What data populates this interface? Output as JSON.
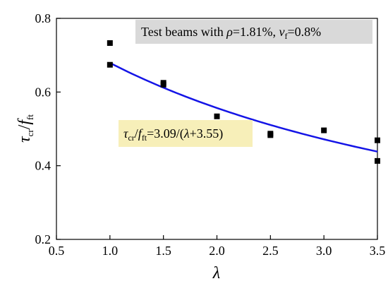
{
  "chart_data": {
    "type": "scatter",
    "xlabel": {
      "main": "λ"
    },
    "ylabel": {
      "main_1": "τ",
      "sub_1": "cr",
      "slash": "/",
      "main_2": "f",
      "sub_2": "ft"
    },
    "xlim": [
      0.5,
      3.5
    ],
    "ylim": [
      0.2,
      0.8
    ],
    "x_ticks": [
      "0.5",
      "1.0",
      "1.5",
      "2.0",
      "2.5",
      "3.0",
      "3.5"
    ],
    "y_ticks": [
      "0.2",
      "0.4",
      "0.6",
      "0.8"
    ],
    "grid": false,
    "series": [
      {
        "kind": "points",
        "color": "#000000",
        "marker": "square",
        "points": [
          {
            "x": 1.0,
            "y": 0.733
          },
          {
            "x": 1.0,
            "y": 0.674
          },
          {
            "x": 1.5,
            "y": 0.625
          },
          {
            "x": 1.5,
            "y": 0.62
          },
          {
            "x": 2.0,
            "y": 0.534
          },
          {
            "x": 2.5,
            "y": 0.487
          },
          {
            "x": 2.5,
            "y": 0.483
          },
          {
            "x": 3.0,
            "y": 0.496
          },
          {
            "x": 3.5,
            "y": 0.469
          },
          {
            "x": 3.5,
            "y": 0.413
          }
        ]
      },
      {
        "kind": "fit",
        "color": "#1414e6",
        "equation": {
          "a": 3.09,
          "b": 3.55
        },
        "x_range": [
          1.0,
          3.5
        ]
      }
    ],
    "annotations": {
      "header": {
        "bg": "#d9d9d9",
        "prefix": "Test beams with ",
        "rho_symbol": "ρ",
        "rho_value": "=1.81%, ",
        "v_symbol": "v",
        "v_sub": "f",
        "v_value": "=0.8%"
      },
      "equation": {
        "bg": "#f7efb9",
        "tau": "τ",
        "tau_sub": "cr",
        "slash": "/",
        "f": "f",
        "f_sub": "ft",
        "eq_part1": "=3.09/(",
        "lambda": "λ",
        "eq_part2": "+3.55)"
      }
    }
  }
}
